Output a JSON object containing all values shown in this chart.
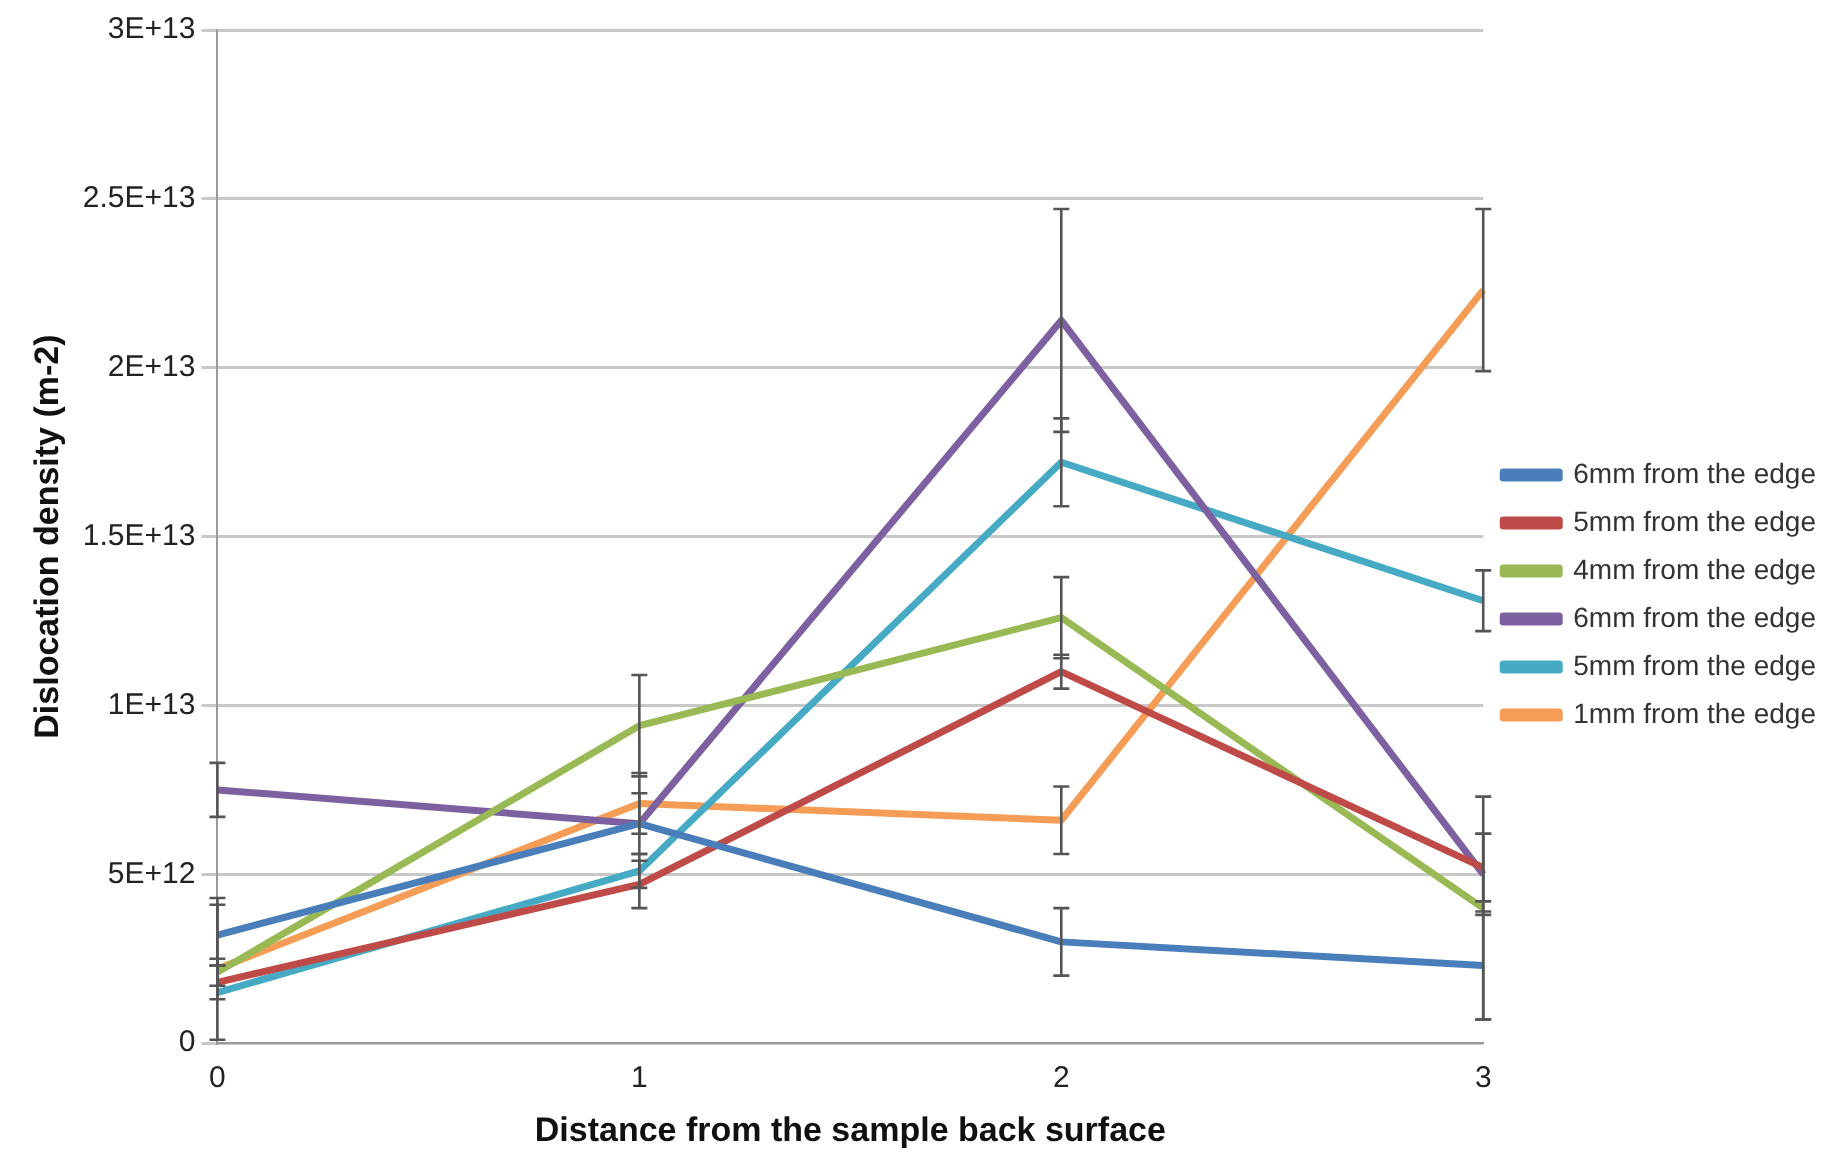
{
  "chart_data": {
    "type": "line",
    "xlabel": "Distance from the sample back surface",
    "ylabel": "Dislocation density (m-2)",
    "categories": [
      "0",
      "1",
      "2",
      "3"
    ],
    "ylim": [
      0,
      30000000000000.0
    ],
    "yticks": [
      {
        "value": 0,
        "label": "0"
      },
      {
        "value": 5000000000000.0,
        "label": "5E+12"
      },
      {
        "value": 10000000000000.0,
        "label": "1E+13"
      },
      {
        "value": 15000000000000.0,
        "label": "1.5E+13"
      },
      {
        "value": 20000000000000.0,
        "label": "2E+13"
      },
      {
        "value": 25000000000000.0,
        "label": "2.5E+13"
      },
      {
        "value": 30000000000000.0,
        "label": "3E+13"
      }
    ],
    "grid": "y",
    "legend": "right",
    "marker": "none",
    "line_style": "solid",
    "series": [
      {
        "name": "6mm from the edge",
        "color": "#4a7ebb",
        "values": [
          3200000000000.0,
          6500000000000.0,
          3000000000000.0,
          2300000000000.0
        ],
        "errors": [
          900000000000.0,
          900000000000.0,
          1000000000000.0,
          1600000000000.0
        ]
      },
      {
        "name": "5mm from the edge",
        "color": "#be4b48",
        "values": [
          1800000000000.0,
          4700000000000.0,
          11000000000000.0,
          5200000000000.0
        ],
        "errors": [
          500000000000.0,
          700000000000.0,
          500000000000.0,
          1000000000000.0
        ]
      },
      {
        "name": "4mm from the edge",
        "color": "#98b954",
        "values": [
          2100000000000.0,
          9400000000000.0,
          12600000000000.0,
          4000000000000.0
        ],
        "errors": [
          400000000000.0,
          1500000000000.0,
          1200000000000.0,
          3300000000000.0
        ]
      },
      {
        "name": "6mm from the edge",
        "color": "#7d60a0",
        "values": [
          7500000000000.0,
          6500000000000.0,
          21400000000000.0,
          5000000000000.0
        ],
        "errors": [
          800000000000.0,
          null,
          3300000000000.0,
          1200000000000.0
        ]
      },
      {
        "name": "5mm from the edge",
        "color": "#46aac5",
        "values": [
          1500000000000.0,
          5100000000000.0,
          17200000000000.0,
          13100000000000.0
        ],
        "errors": [
          null,
          500000000000.0,
          1300000000000.0,
          900000000000.0
        ]
      },
      {
        "name": "1mm from the edge",
        "color": "#f59d56",
        "values": [
          2200000000000.0,
          7100000000000.0,
          6600000000000.0,
          22300000000000.0
        ],
        "errors": [
          2100000000000.0,
          900000000000.0,
          1000000000000.0,
          2400000000000.0
        ]
      }
    ]
  }
}
